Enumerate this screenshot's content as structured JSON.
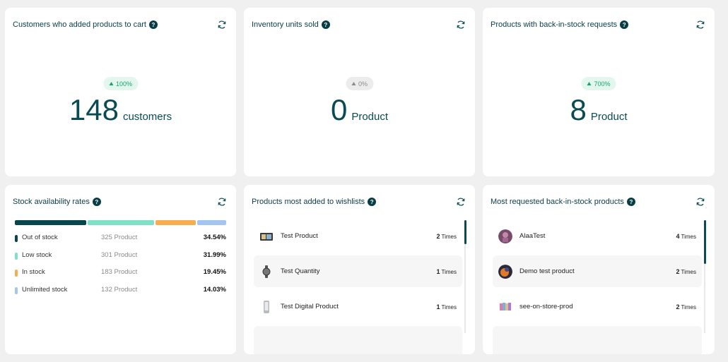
{
  "cards": {
    "cart": {
      "title": "Customers who added products to cart",
      "badge": "100%",
      "value": "148",
      "unit": "customers"
    },
    "sold": {
      "title": "Inventory units sold",
      "badge": "0%",
      "value": "0",
      "unit": "Product"
    },
    "backinstock": {
      "title": "Products with back-in-stock requests",
      "badge": "700%",
      "value": "8",
      "unit": "Product"
    }
  },
  "stock": {
    "title": "Stock availability rates",
    "rows": [
      {
        "name": "Out of stock",
        "count": "325 Product",
        "pct": "34.54%",
        "value": 34.54,
        "color": "#08444e"
      },
      {
        "name": "Low stock",
        "count": "301 Product",
        "pct": "31.99%",
        "value": 31.99,
        "color": "#7fe0c7"
      },
      {
        "name": "In stock",
        "count": "183 Product",
        "pct": "19.45%",
        "value": 19.45,
        "color": "#f5ad4f"
      },
      {
        "name": "Unlimited stock",
        "count": "132 Product",
        "pct": "14.03%",
        "value": 14.03,
        "color": "#a4c4f2"
      }
    ]
  },
  "wishlists": {
    "title": "Products most added to wishlists",
    "items": [
      {
        "name": "Test Product",
        "count": "2",
        "times": "Times"
      },
      {
        "name": "Test Quantity",
        "count": "1",
        "times": "Times"
      },
      {
        "name": "Test Digital Product",
        "count": "1",
        "times": "Times"
      }
    ]
  },
  "requested": {
    "title": "Most requested back-in-stock products",
    "items": [
      {
        "name": "AlaaTest",
        "count": "4",
        "times": "Times"
      },
      {
        "name": "Demo test product",
        "count": "2",
        "times": "Times"
      },
      {
        "name": "see-on-store-prod",
        "count": "2",
        "times": "Times"
      }
    ]
  },
  "help_glyph": "?",
  "colors": {
    "primary": "#0a4a52",
    "positive": "#19a46e",
    "background": "#f0f0f0"
  }
}
